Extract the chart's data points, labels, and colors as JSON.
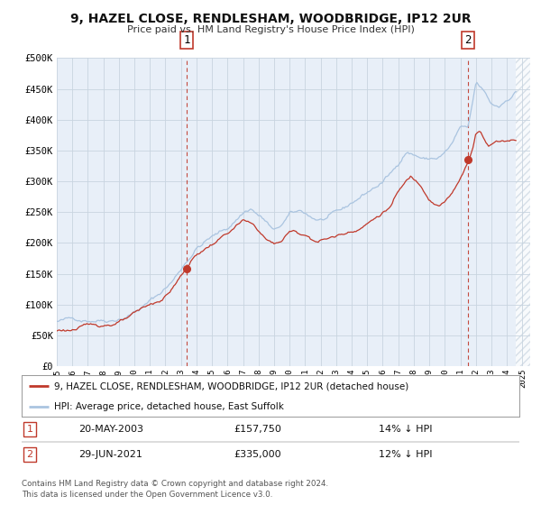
{
  "title": "9, HAZEL CLOSE, RENDLESHAM, WOODBRIDGE, IP12 2UR",
  "subtitle": "Price paid vs. HM Land Registry's House Price Index (HPI)",
  "hpi_color": "#aac4e0",
  "price_color": "#c0392b",
  "background_color": "#ffffff",
  "plot_bg_color": "#e8eff8",
  "grid_color": "#c8d4e0",
  "hatch_color": "#c8d4e0",
  "ylim": [
    0,
    500000
  ],
  "yticks": [
    0,
    50000,
    100000,
    150000,
    200000,
    250000,
    300000,
    350000,
    400000,
    450000,
    500000
  ],
  "ytick_labels": [
    "£0",
    "£50K",
    "£100K",
    "£150K",
    "£200K",
    "£250K",
    "£300K",
    "£350K",
    "£400K",
    "£450K",
    "£500K"
  ],
  "xlim_start": 1995.0,
  "xlim_end": 2025.5,
  "data_end": 2024.58,
  "sale1_year": 2003.38,
  "sale1_price": 157750,
  "sale1_label": "1",
  "sale1_date": "20-MAY-2003",
  "sale1_hpi_diff": "14% ↓ HPI",
  "sale2_year": 2021.49,
  "sale2_price": 335000,
  "sale2_label": "2",
  "sale2_date": "29-JUN-2021",
  "sale2_hpi_diff": "12% ↓ HPI",
  "legend_property": "9, HAZEL CLOSE, RENDLESHAM, WOODBRIDGE, IP12 2UR (detached house)",
  "legend_hpi": "HPI: Average price, detached house, East Suffolk",
  "footnote": "Contains HM Land Registry data © Crown copyright and database right 2024.\nThis data is licensed under the Open Government Licence v3.0."
}
